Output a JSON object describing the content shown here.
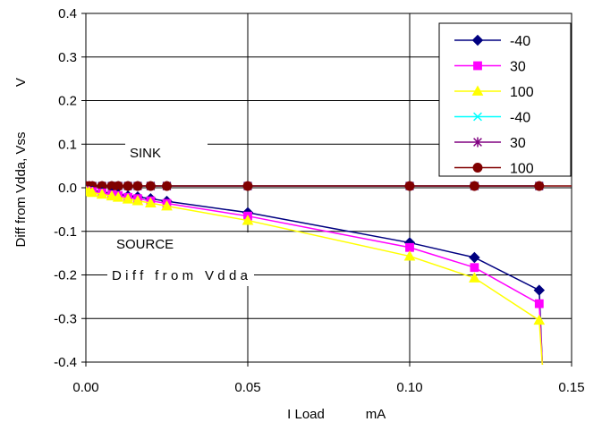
{
  "chart_data": {
    "type": "line",
    "xlabel": "I Load",
    "xunit": "mA",
    "ylabel": "Diff from Vdda, Vss",
    "yunit": "V",
    "xlim": [
      0,
      0.15
    ],
    "ylim": [
      -0.4,
      0.4
    ],
    "x_ticks": [
      "0.00",
      "0.05",
      "0.10",
      "0.15"
    ],
    "y_ticks": [
      "-0.4",
      "-0.3",
      "-0.2",
      "-0.1",
      "0.0",
      "0.1",
      "0.2",
      "0.3",
      "0.4"
    ],
    "grid": true,
    "legend_position": "top-right",
    "annotations": [
      "SINK",
      "SOURCE",
      "Diff from Vdda"
    ],
    "series": [
      {
        "name": "-40",
        "color": "#000080",
        "marker": "diamond",
        "x": [
          0.0,
          0.001,
          0.002,
          0.005,
          0.008,
          0.01,
          0.013,
          0.016,
          0.02,
          0.025,
          0.05,
          0.1,
          0.12,
          0.14,
          0.141
        ],
        "y": [
          -0.006,
          -0.007,
          -0.008,
          -0.011,
          -0.014,
          -0.016,
          -0.019,
          -0.021,
          -0.025,
          -0.031,
          -0.057,
          -0.126,
          -0.16,
          -0.235,
          -0.41
        ]
      },
      {
        "name": "30",
        "color": "#ff00ff",
        "marker": "square",
        "x": [
          0.0,
          0.001,
          0.002,
          0.005,
          0.008,
          0.01,
          0.013,
          0.016,
          0.02,
          0.025,
          0.05,
          0.1,
          0.12,
          0.14,
          0.141
        ],
        "y": [
          -0.007,
          -0.008,
          -0.009,
          -0.012,
          -0.016,
          -0.018,
          -0.022,
          -0.025,
          -0.03,
          -0.036,
          -0.065,
          -0.137,
          -0.183,
          -0.266,
          -0.41
        ]
      },
      {
        "name": "100",
        "color": "#ffff00",
        "marker": "triangle",
        "x": [
          0.0,
          0.001,
          0.002,
          0.005,
          0.008,
          0.01,
          0.013,
          0.016,
          0.02,
          0.025,
          0.05,
          0.1,
          0.12,
          0.14,
          0.141
        ],
        "y": [
          -0.008,
          -0.009,
          -0.011,
          -0.015,
          -0.019,
          -0.022,
          -0.026,
          -0.03,
          -0.035,
          -0.042,
          -0.075,
          -0.157,
          -0.207,
          -0.304,
          -0.41
        ]
      },
      {
        "name": "-40",
        "color": "#00ffff",
        "marker": "x",
        "x": [
          0.0,
          0.001,
          0.002,
          0.005,
          0.008,
          0.01,
          0.013,
          0.016,
          0.02,
          0.025,
          0.05,
          0.1,
          0.12,
          0.14
        ],
        "y": [
          0.004,
          0.004,
          0.004,
          0.004,
          0.004,
          0.004,
          0.004,
          0.004,
          0.004,
          0.004,
          0.004,
          0.004,
          0.004,
          0.004
        ]
      },
      {
        "name": "30",
        "color": "#800080",
        "marker": "asterisk",
        "x": [
          0.0,
          0.001,
          0.002,
          0.005,
          0.008,
          0.01,
          0.013,
          0.016,
          0.02,
          0.025,
          0.05,
          0.1,
          0.12,
          0.14
        ],
        "y": [
          0.004,
          0.004,
          0.004,
          0.004,
          0.004,
          0.004,
          0.004,
          0.004,
          0.004,
          0.004,
          0.004,
          0.004,
          0.004,
          0.004
        ]
      },
      {
        "name": "100",
        "color": "#800000",
        "marker": "circle",
        "x": [
          0.0,
          0.001,
          0.002,
          0.005,
          0.008,
          0.01,
          0.013,
          0.016,
          0.02,
          0.025,
          0.05,
          0.1,
          0.12,
          0.14,
          0.15
        ],
        "y": [
          0.004,
          0.004,
          0.004,
          0.004,
          0.004,
          0.004,
          0.004,
          0.004,
          0.004,
          0.004,
          0.004,
          0.004,
          0.004,
          0.004,
          0.004
        ]
      }
    ]
  }
}
